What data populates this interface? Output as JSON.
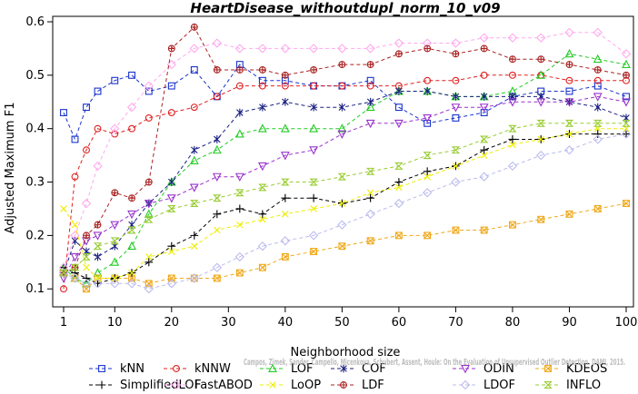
{
  "chart_data": {
    "type": "line",
    "title": "HeartDisease_withoutdupl_norm_10_v09",
    "xlabel": "Neighborhood size",
    "ylabel": "Adjusted Maximum F1",
    "xlim": [
      1,
      100
    ],
    "ylim": [
      0.08,
      0.6
    ],
    "xticks": [
      1,
      10,
      20,
      30,
      40,
      50,
      60,
      70,
      80,
      90,
      100
    ],
    "yticks": [
      0.1,
      0.2,
      0.3,
      0.4,
      0.5,
      0.6
    ],
    "grid": false,
    "legend_position": "bottom",
    "credit": "Campos, Zimek, Sander, Campello, Micenkova, Schubert, Assent, Houle: On the Evaluation of Unsupervised Outlier Detection. DAMI, 2015.",
    "series": [
      {
        "name": "kNN",
        "color": "#1a33cc",
        "marker": "square",
        "x": [
          1,
          3,
          5,
          7,
          10,
          13,
          16,
          20,
          24,
          28,
          32,
          36,
          40,
          45,
          50,
          55,
          60,
          65,
          70,
          75,
          80,
          85,
          90,
          95,
          100
        ],
        "y": [
          0.43,
          0.38,
          0.44,
          0.47,
          0.49,
          0.5,
          0.47,
          0.48,
          0.51,
          0.46,
          0.52,
          0.49,
          0.49,
          0.48,
          0.48,
          0.49,
          0.44,
          0.41,
          0.42,
          0.43,
          0.46,
          0.47,
          0.47,
          0.48,
          0.46
        ]
      },
      {
        "name": "kNNW",
        "color": "#e02020",
        "marker": "circle",
        "x": [
          1,
          3,
          5,
          7,
          10,
          13,
          16,
          20,
          24,
          28,
          32,
          36,
          40,
          45,
          50,
          55,
          60,
          65,
          70,
          75,
          80,
          85,
          90,
          95,
          100
        ],
        "y": [
          0.1,
          0.31,
          0.36,
          0.4,
          0.39,
          0.4,
          0.42,
          0.43,
          0.44,
          0.46,
          0.48,
          0.48,
          0.48,
          0.48,
          0.48,
          0.48,
          0.48,
          0.49,
          0.49,
          0.5,
          0.5,
          0.5,
          0.49,
          0.49,
          0.49
        ]
      },
      {
        "name": "LOF",
        "color": "#22cc22",
        "marker": "triangle",
        "x": [
          1,
          3,
          5,
          7,
          10,
          13,
          16,
          20,
          24,
          28,
          32,
          36,
          40,
          45,
          50,
          55,
          60,
          65,
          70,
          75,
          80,
          85,
          90,
          95,
          100
        ],
        "y": [
          0.14,
          0.12,
          0.11,
          0.13,
          0.15,
          0.18,
          0.24,
          0.3,
          0.34,
          0.36,
          0.39,
          0.4,
          0.4,
          0.4,
          0.4,
          0.44,
          0.47,
          0.47,
          0.46,
          0.46,
          0.47,
          0.5,
          0.54,
          0.53,
          0.52
        ]
      },
      {
        "name": "COF",
        "color": "#1a2080",
        "marker": "asterisk",
        "x": [
          1,
          3,
          5,
          7,
          10,
          13,
          16,
          20,
          24,
          28,
          32,
          36,
          40,
          45,
          50,
          55,
          60,
          65,
          70,
          75,
          80,
          85,
          90,
          95,
          100
        ],
        "y": [
          0.13,
          0.19,
          0.17,
          0.16,
          0.18,
          0.22,
          0.26,
          0.3,
          0.36,
          0.38,
          0.43,
          0.44,
          0.45,
          0.44,
          0.44,
          0.45,
          0.47,
          0.47,
          0.46,
          0.46,
          0.46,
          0.46,
          0.45,
          0.44,
          0.42
        ]
      },
      {
        "name": "ODIN",
        "color": "#9933cc",
        "marker": "triangle-down",
        "x": [
          1,
          3,
          5,
          7,
          10,
          13,
          16,
          20,
          24,
          28,
          32,
          36,
          40,
          45,
          50,
          55,
          60,
          65,
          70,
          75,
          80,
          85,
          90,
          95,
          100
        ],
        "y": [
          0.12,
          0.16,
          0.19,
          0.2,
          0.22,
          0.24,
          0.26,
          0.27,
          0.29,
          0.31,
          0.31,
          0.33,
          0.35,
          0.36,
          0.39,
          0.41,
          0.41,
          0.42,
          0.44,
          0.44,
          0.45,
          0.45,
          0.45,
          0.46,
          0.45
        ]
      },
      {
        "name": "KDEOS",
        "color": "#f0a818",
        "marker": "square-x",
        "x": [
          1,
          3,
          5,
          7,
          10,
          13,
          16,
          20,
          24,
          28,
          32,
          36,
          40,
          45,
          50,
          55,
          60,
          65,
          70,
          75,
          80,
          85,
          90,
          95,
          100
        ],
        "y": [
          0.13,
          0.12,
          0.1,
          0.12,
          0.12,
          0.12,
          0.11,
          0.12,
          0.12,
          0.12,
          0.13,
          0.14,
          0.16,
          0.17,
          0.18,
          0.19,
          0.2,
          0.2,
          0.21,
          0.21,
          0.22,
          0.23,
          0.24,
          0.25,
          0.26
        ]
      },
      {
        "name": "SimplifiedLOF",
        "color": "#000000",
        "marker": "plus",
        "x": [
          1,
          3,
          5,
          7,
          10,
          13,
          16,
          20,
          24,
          28,
          32,
          36,
          40,
          45,
          50,
          55,
          60,
          65,
          70,
          75,
          80,
          85,
          90,
          95,
          100
        ],
        "y": [
          0.14,
          0.13,
          0.12,
          0.11,
          0.12,
          0.13,
          0.15,
          0.18,
          0.2,
          0.24,
          0.25,
          0.24,
          0.27,
          0.27,
          0.26,
          0.27,
          0.3,
          0.32,
          0.33,
          0.36,
          0.38,
          0.38,
          0.39,
          0.39,
          0.39
        ]
      },
      {
        "name": "FastABOD",
        "color": "#ffaaee",
        "marker": "diamond",
        "x": [
          1,
          3,
          5,
          7,
          10,
          13,
          16,
          20,
          24,
          28,
          32,
          36,
          40,
          45,
          50,
          55,
          60,
          65,
          70,
          75,
          80,
          85,
          90,
          95,
          100
        ],
        "y": [
          0.14,
          0.2,
          0.26,
          0.33,
          0.4,
          0.44,
          0.48,
          0.52,
          0.55,
          0.56,
          0.55,
          0.55,
          0.55,
          0.55,
          0.55,
          0.55,
          0.56,
          0.56,
          0.56,
          0.57,
          0.57,
          0.57,
          0.58,
          0.58,
          0.54
        ]
      },
      {
        "name": "LoOP",
        "color": "#eeee00",
        "marker": "x",
        "x": [
          1,
          3,
          5,
          7,
          10,
          13,
          16,
          20,
          24,
          28,
          32,
          36,
          40,
          45,
          50,
          55,
          60,
          65,
          70,
          75,
          80,
          85,
          90,
          95,
          100
        ],
        "y": [
          0.25,
          0.22,
          0.14,
          0.12,
          0.12,
          0.13,
          0.16,
          0.17,
          0.18,
          0.21,
          0.22,
          0.23,
          0.24,
          0.25,
          0.26,
          0.28,
          0.29,
          0.31,
          0.33,
          0.35,
          0.37,
          0.38,
          0.39,
          0.4,
          0.4
        ]
      },
      {
        "name": "LDF",
        "color": "#aa2222",
        "marker": "circle-plus",
        "x": [
          1,
          3,
          5,
          7,
          10,
          13,
          16,
          20,
          24,
          28,
          32,
          36,
          40,
          45,
          50,
          55,
          60,
          65,
          70,
          75,
          80,
          85,
          90,
          95,
          100
        ],
        "y": [
          0.13,
          0.14,
          0.2,
          0.22,
          0.28,
          0.27,
          0.3,
          0.55,
          0.59,
          0.51,
          0.51,
          0.51,
          0.5,
          0.51,
          0.52,
          0.52,
          0.54,
          0.55,
          0.54,
          0.55,
          0.53,
          0.53,
          0.52,
          0.51,
          0.5
        ]
      },
      {
        "name": "LDOF",
        "color": "#bbbbee",
        "marker": "diamond",
        "x": [
          1,
          3,
          5,
          7,
          10,
          13,
          16,
          20,
          24,
          28,
          32,
          36,
          40,
          45,
          50,
          55,
          60,
          65,
          70,
          75,
          80,
          85,
          90,
          95,
          100
        ],
        "y": [
          0.13,
          0.12,
          0.11,
          0.11,
          0.11,
          0.11,
          0.1,
          0.11,
          0.12,
          0.14,
          0.16,
          0.18,
          0.19,
          0.2,
          0.22,
          0.24,
          0.26,
          0.28,
          0.3,
          0.31,
          0.33,
          0.35,
          0.36,
          0.38,
          0.39
        ]
      },
      {
        "name": "INFLO",
        "color": "#99cc33",
        "marker": "hourglass",
        "x": [
          1,
          3,
          5,
          7,
          10,
          13,
          16,
          20,
          24,
          28,
          32,
          36,
          40,
          45,
          50,
          55,
          60,
          65,
          70,
          75,
          80,
          85,
          90,
          95,
          100
        ],
        "y": [
          0.13,
          0.14,
          0.16,
          0.18,
          0.19,
          0.21,
          0.23,
          0.25,
          0.26,
          0.27,
          0.28,
          0.29,
          0.3,
          0.3,
          0.31,
          0.32,
          0.33,
          0.35,
          0.36,
          0.38,
          0.4,
          0.41,
          0.41,
          0.41,
          0.41
        ]
      }
    ]
  }
}
